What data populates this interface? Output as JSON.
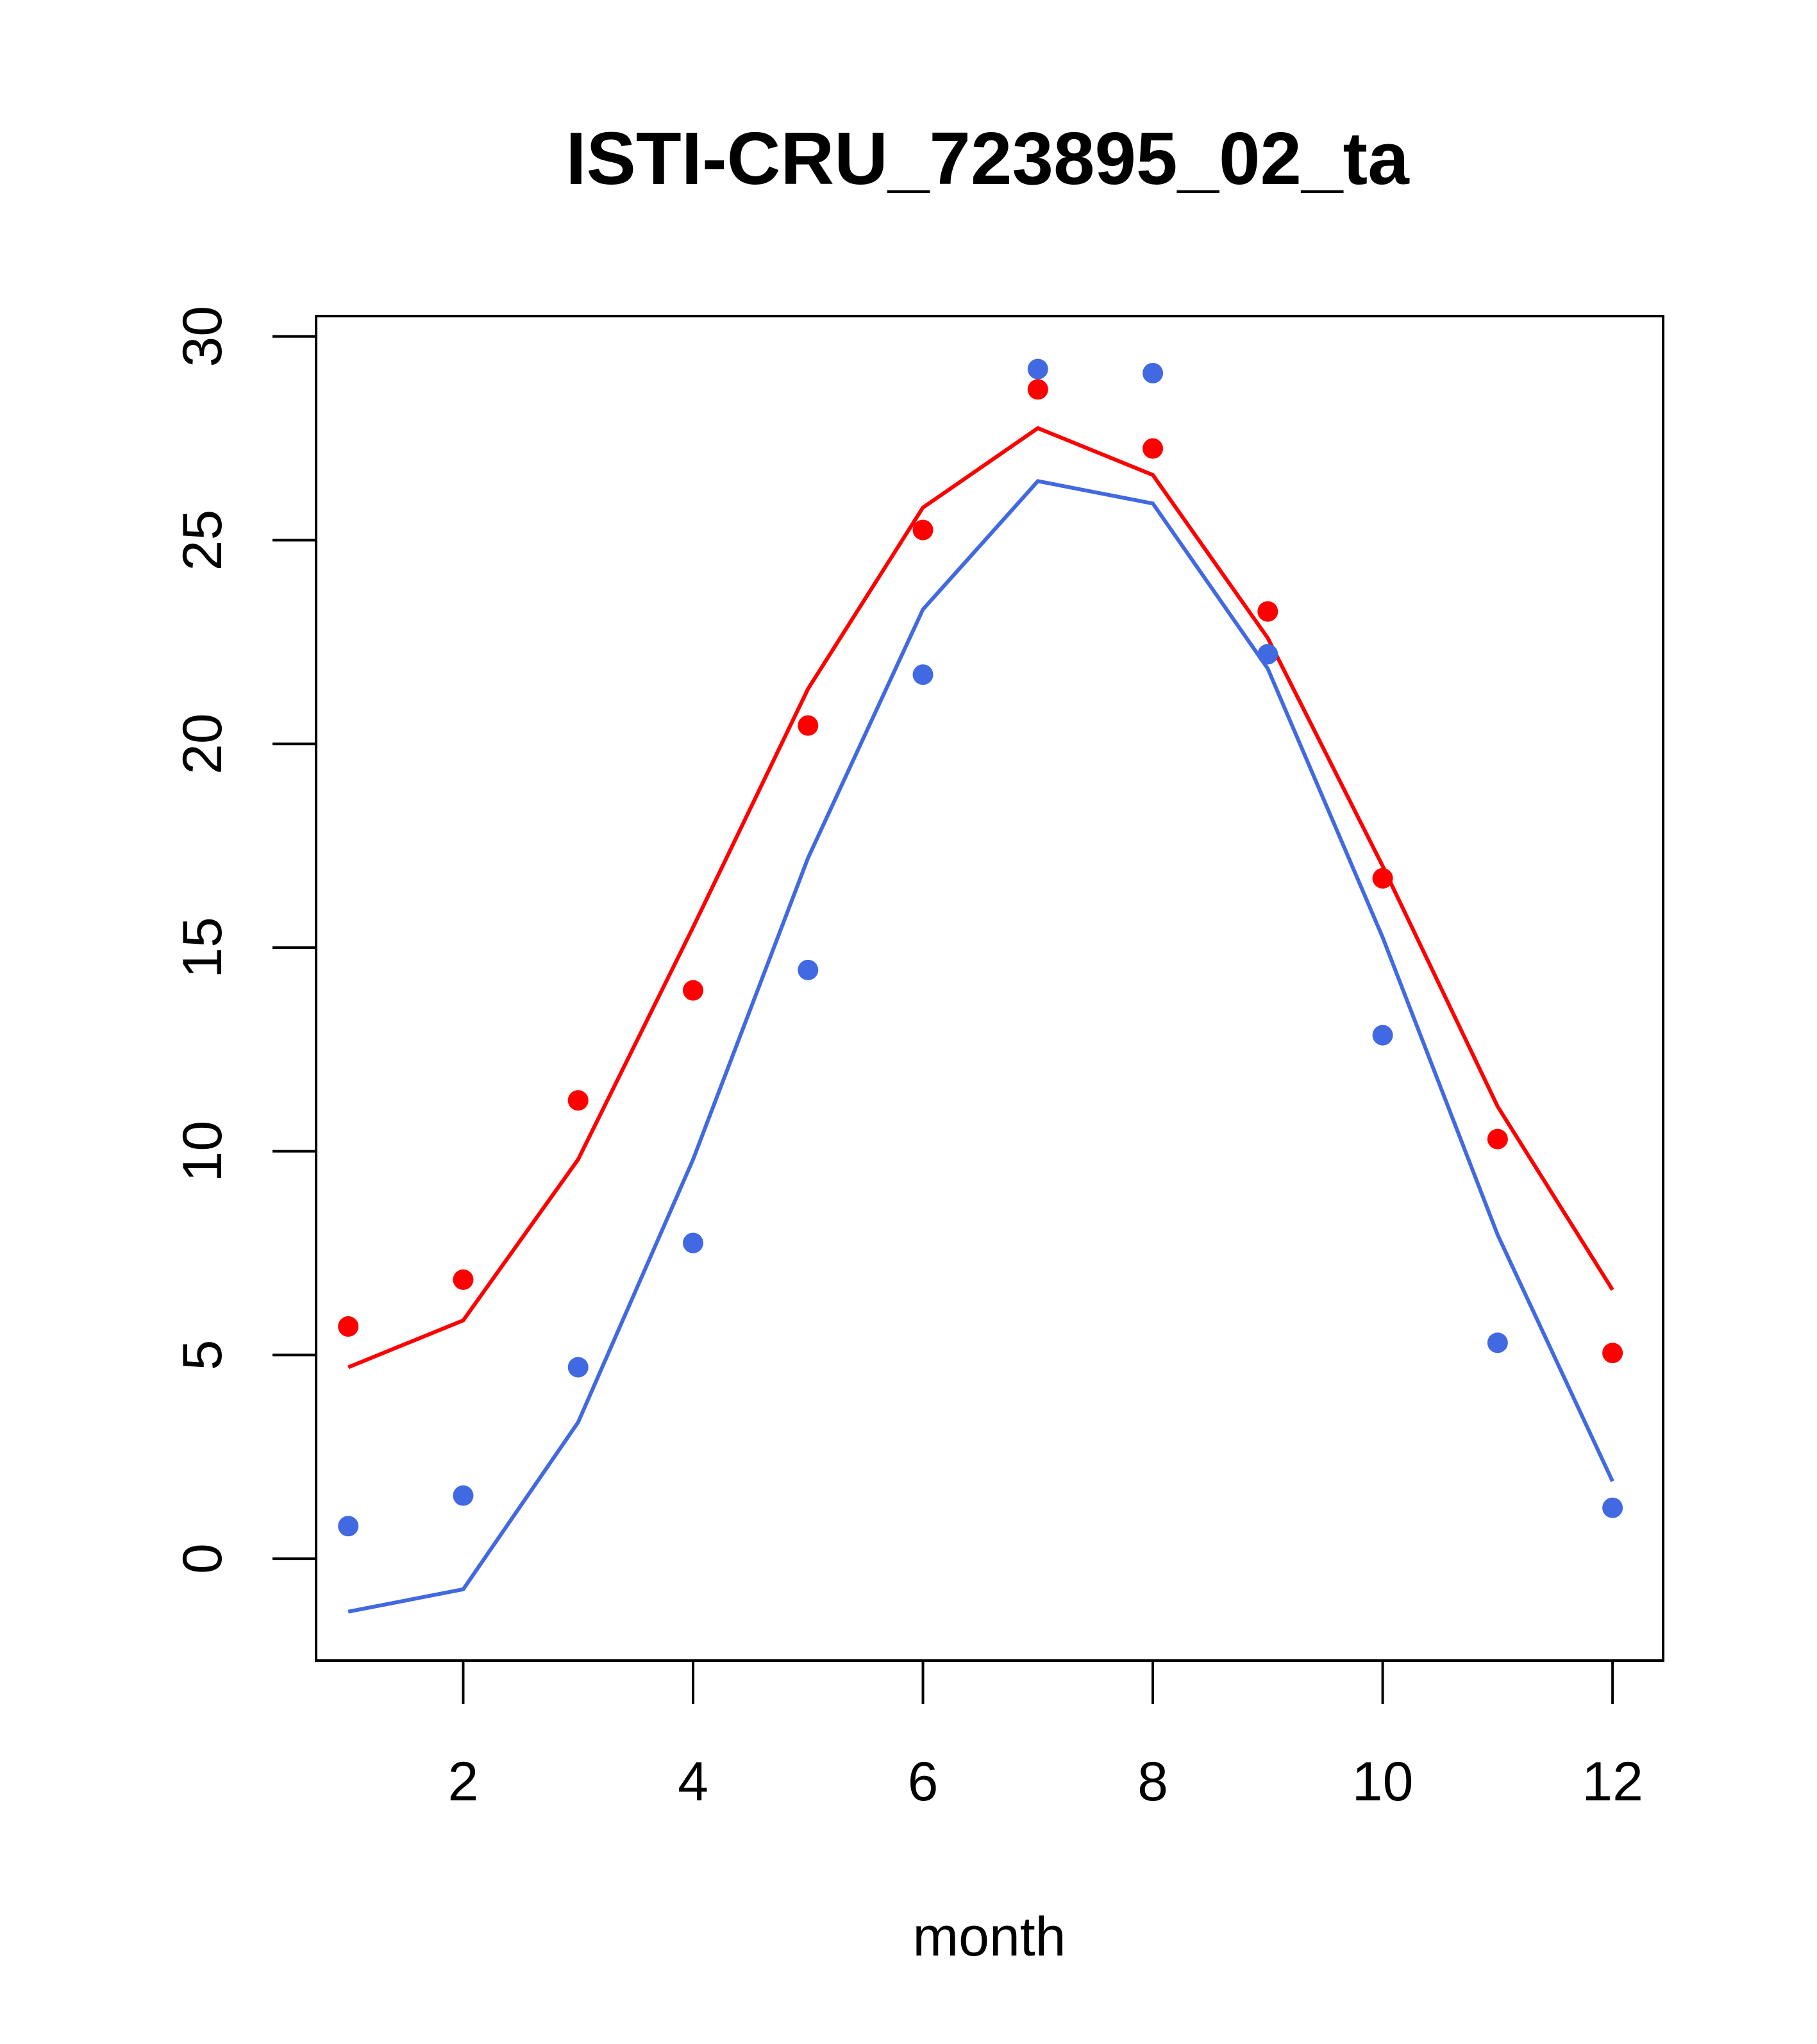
{
  "chart_data": {
    "type": "line",
    "title": "ISTI-CRU_723895_02_ta",
    "xlabel": "month",
    "ylabel": "",
    "x": [
      1,
      2,
      3,
      4,
      5,
      6,
      7,
      8,
      9,
      10,
      11,
      12
    ],
    "xticks": [
      2,
      4,
      6,
      8,
      10,
      12
    ],
    "yticks": [
      0,
      5,
      10,
      15,
      20,
      25,
      30
    ],
    "xlim": [
      0.72,
      12.44
    ],
    "ylim": [
      -2.5,
      30.5
    ],
    "grid": false,
    "legend": "none",
    "series": [
      {
        "color": "#ff0000",
        "line": [
          4.7,
          5.85,
          9.8,
          15.5,
          21.35,
          25.8,
          27.75,
          26.6,
          22.6,
          17.0,
          11.1,
          6.6
        ],
        "points": [
          5.7,
          6.85,
          11.25,
          13.95,
          20.45,
          25.25,
          28.7,
          27.25,
          23.25,
          16.7,
          10.3,
          5.05
        ]
      },
      {
        "color": "#4169e1",
        "line": [
          -1.3,
          -0.75,
          3.35,
          9.8,
          17.2,
          23.3,
          26.45,
          25.9,
          21.85,
          15.25,
          7.95,
          1.9
        ],
        "points": [
          0.8,
          1.55,
          4.7,
          7.75,
          14.45,
          21.7,
          29.2,
          29.1,
          22.2,
          12.85,
          5.3,
          1.25
        ]
      }
    ]
  }
}
